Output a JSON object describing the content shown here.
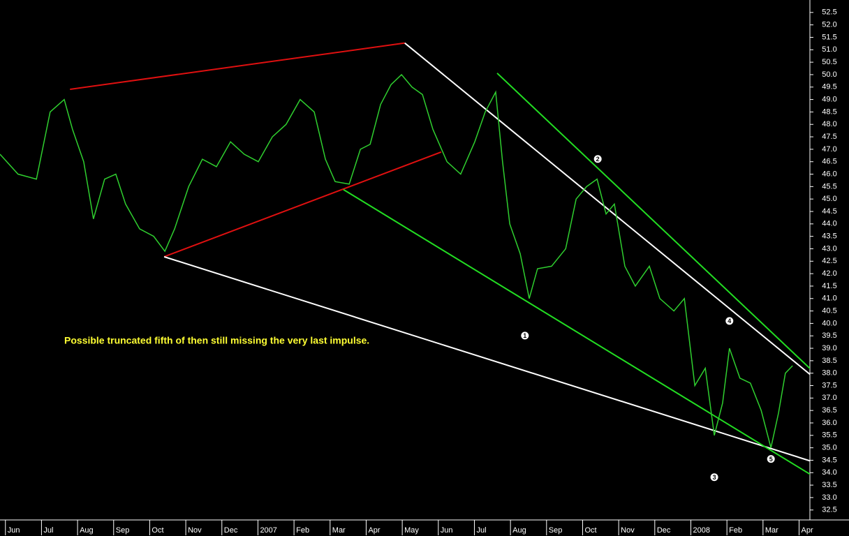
{
  "chart_data": {
    "type": "line",
    "note": "Possible truncated fifth of then still missing the very last impulse.",
    "xlim": [
      -0.15,
      22.3
    ],
    "ylim": [
      32.1,
      53.0
    ],
    "xticks": [
      {
        "value": 0,
        "label": "Jun"
      },
      {
        "value": 1,
        "label": "Jul"
      },
      {
        "value": 2,
        "label": "Aug"
      },
      {
        "value": 3,
        "label": "Sep"
      },
      {
        "value": 4,
        "label": "Oct"
      },
      {
        "value": 5,
        "label": "Nov"
      },
      {
        "value": 6,
        "label": "Dec"
      },
      {
        "value": 7,
        "label": "2007"
      },
      {
        "value": 8,
        "label": "Feb"
      },
      {
        "value": 9,
        "label": "Mar"
      },
      {
        "value": 10,
        "label": "Apr"
      },
      {
        "value": 11,
        "label": "May"
      },
      {
        "value": 12,
        "label": "Jun"
      },
      {
        "value": 13,
        "label": "Jul"
      },
      {
        "value": 14,
        "label": "Aug"
      },
      {
        "value": 15,
        "label": "Sep"
      },
      {
        "value": 16,
        "label": "Oct"
      },
      {
        "value": 17,
        "label": "Nov"
      },
      {
        "value": 18,
        "label": "Dec"
      },
      {
        "value": 19,
        "label": "2008"
      },
      {
        "value": 20,
        "label": "Feb"
      },
      {
        "value": 21,
        "label": "Mar"
      },
      {
        "value": 22,
        "label": "Apr"
      }
    ],
    "yticks": [
      52.5,
      {
        "value": 52,
        "label": "52.0"
      },
      51.5,
      {
        "value": 51,
        "label": "51.0"
      },
      50.5,
      {
        "value": 50,
        "label": "50.0"
      },
      49.5,
      {
        "value": 49,
        "label": "49.0"
      },
      48.5,
      {
        "value": 48,
        "label": "48.0"
      },
      47.5,
      {
        "value": 47,
        "label": "47.0"
      },
      46.5,
      {
        "value": 46,
        "label": "46.0"
      },
      45.5,
      {
        "value": 45,
        "label": "45.0"
      },
      44.5,
      {
        "value": 44,
        "label": "44.0"
      },
      43.5,
      {
        "value": 43,
        "label": "43.0"
      },
      42.5,
      {
        "value": 42,
        "label": "42.0"
      },
      41.5,
      {
        "value": 41,
        "label": "41.0"
      },
      40.5,
      {
        "value": 40,
        "label": "40.0"
      },
      39.5,
      {
        "value": 39,
        "label": "39.0"
      },
      38.5,
      {
        "value": 38,
        "label": "38.0"
      },
      37.5,
      {
        "value": 37,
        "label": "37.0"
      },
      36.5,
      {
        "value": 36,
        "label": "36.0"
      },
      35.5,
      {
        "value": 35,
        "label": "35.0"
      },
      34.5,
      {
        "value": 34,
        "label": "34.0"
      },
      33.5,
      {
        "value": 33,
        "label": "33.0"
      },
      32.5
    ],
    "series": [
      {
        "color": "#2fcf2f",
        "x": [
          -0.15,
          0.35,
          0.86,
          1.24,
          1.63,
          1.86,
          2.17,
          2.44,
          2.75,
          3.06,
          3.33,
          3.72,
          4.11,
          4.42,
          4.69,
          5.08,
          5.46,
          5.85,
          6.24,
          6.62,
          7.01,
          7.4,
          7.78,
          8.17,
          8.56,
          8.87,
          9.14,
          9.53,
          9.84,
          10.11,
          10.4,
          10.69,
          10.98,
          11.27,
          11.56,
          11.85,
          12.24,
          12.62,
          13.01,
          13.3,
          13.59,
          13.78,
          13.98,
          14.27,
          14.52,
          14.75,
          15.14,
          15.53,
          15.82,
          16.11,
          16.4,
          16.65,
          16.88,
          17.17,
          17.46,
          17.85,
          18.14,
          18.53,
          18.82,
          19.11,
          19.4,
          19.65,
          19.88,
          20.07,
          20.36,
          20.65,
          20.95,
          21.22,
          21.43,
          21.62,
          21.82
        ],
        "values": [
          46.8,
          46.0,
          45.8,
          48.5,
          49.0,
          47.8,
          46.5,
          44.2,
          45.8,
          46.0,
          44.8,
          43.8,
          43.5,
          42.9,
          43.8,
          45.5,
          46.6,
          46.3,
          47.3,
          46.8,
          46.5,
          47.5,
          48.0,
          49.0,
          48.5,
          46.6,
          45.7,
          45.6,
          47.0,
          47.2,
          48.8,
          49.6,
          50.0,
          49.5,
          49.2,
          47.8,
          46.5,
          46.0,
          47.3,
          48.5,
          49.3,
          46.5,
          44.0,
          42.8,
          41.0,
          42.2,
          42.3,
          43.0,
          45.0,
          45.5,
          45.8,
          44.4,
          44.8,
          42.3,
          41.5,
          42.3,
          41.0,
          40.5,
          41.0,
          37.5,
          38.2,
          35.5,
          36.8,
          39.0,
          37.8,
          37.6,
          36.5,
          35.0,
          36.4,
          38.0,
          38.3
        ]
      }
    ],
    "trendlines": [
      {
        "color": "#e01010",
        "x": [
          1.79,
          11.07
        ],
        "y": [
          49.41,
          51.27
        ]
      },
      {
        "color": "#e01010",
        "x": [
          4.4,
          12.08
        ],
        "y": [
          42.68,
          46.89
        ]
      },
      {
        "color": "#ffffff",
        "x": [
          11.07,
          22.38
        ],
        "y": [
          51.27,
          37.86
        ]
      },
      {
        "color": "#ffffff",
        "x": [
          4.4,
          22.38
        ],
        "y": [
          42.68,
          34.44
        ]
      },
      {
        "color": "#22dd22",
        "x": [
          13.63,
          22.38
        ],
        "y": [
          50.06,
          38.08
        ]
      },
      {
        "color": "#22dd22",
        "x": [
          9.37,
          22.38
        ],
        "y": [
          45.38,
          33.87
        ]
      }
    ],
    "annotations": [
      {
        "text": "1",
        "x": 14.4,
        "y": 39.51
      },
      {
        "text": "2",
        "x": 16.42,
        "y": 46.61
      },
      {
        "text": "3",
        "x": 19.65,
        "y": 33.82
      },
      {
        "text": "4",
        "x": 20.07,
        "y": 40.1
      },
      {
        "text": "5",
        "x": 21.22,
        "y": 34.55
      }
    ]
  }
}
